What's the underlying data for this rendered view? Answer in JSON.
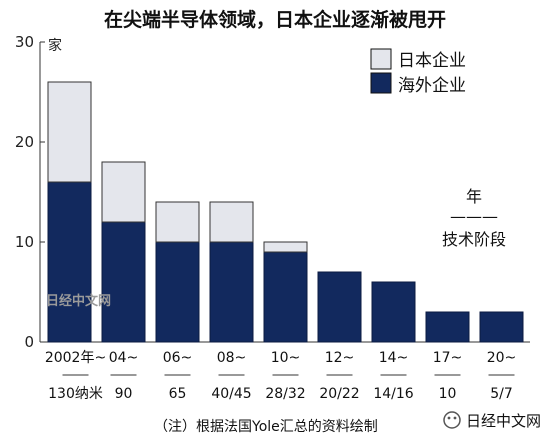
{
  "chart_data": {
    "type": "bar",
    "stacked": true,
    "title": "在尖端半导体领域，日本企业逐渐被甩开",
    "ylabel": "家",
    "ylim": [
      0,
      30
    ],
    "yticks": [
      "0",
      "10",
      "20",
      "30"
    ],
    "categories": [
      "2002年~",
      "04~",
      "06~",
      "08~",
      "10~",
      "12~",
      "14~",
      "17~",
      "20~"
    ],
    "categories_nm": [
      "130纳米",
      "90",
      "65",
      "40/45",
      "28/32",
      "20/22",
      "14/16",
      "10",
      "5/7"
    ],
    "series": [
      {
        "name": "海外企业",
        "color": "#12295e",
        "values": [
          16,
          12,
          10,
          10,
          9,
          7,
          6,
          3,
          3
        ]
      },
      {
        "name": "日本企业",
        "color": "#e4e6ec",
        "values": [
          10,
          6,
          4,
          4,
          1,
          0,
          0,
          0,
          0
        ]
      }
    ],
    "legend": {
      "position": "top-right",
      "entries": [
        "日本企业",
        "海外企业"
      ]
    },
    "side_label": {
      "top": "年",
      "dash": "———",
      "bottom": "技术阶段"
    },
    "note": "（注）根据法国Yole汇总的资料绘制",
    "watermark": "日经中文网",
    "brand": "日经中文网",
    "grid": false
  }
}
